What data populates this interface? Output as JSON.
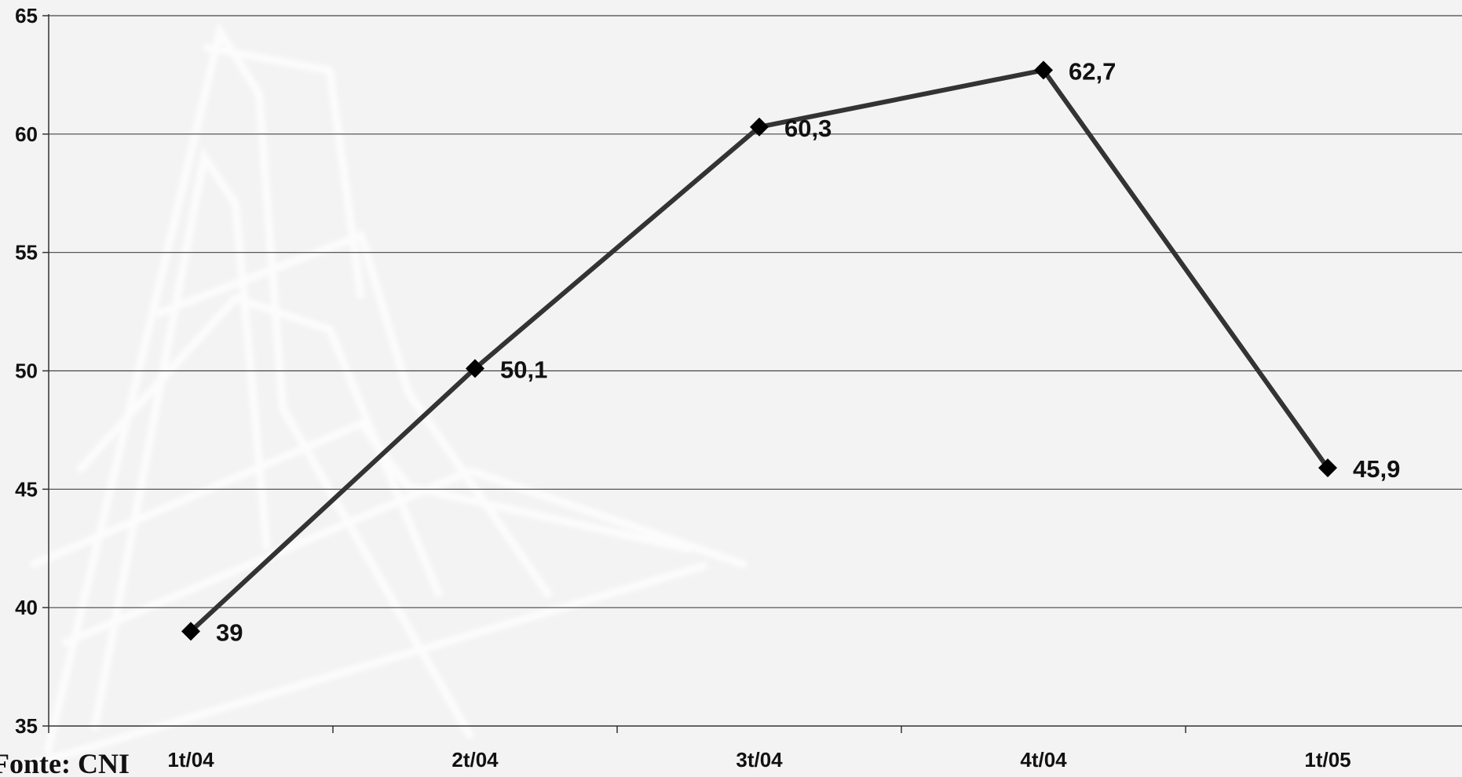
{
  "source": "Fonte: CNI",
  "chart_data": {
    "type": "line",
    "categories": [
      "1t/04",
      "2t/04",
      "3t/04",
      "4t/04",
      "1t/05"
    ],
    "series": [
      {
        "values": [
          39,
          50.1,
          60.3,
          62.7,
          45.9
        ],
        "data_labels": [
          "39",
          "50,1",
          "60,3",
          "62,7",
          "45,9"
        ],
        "color": "#333333",
        "marker": "diamond"
      }
    ],
    "ylim": [
      35,
      65
    ],
    "y_ticks": [
      35,
      40,
      45,
      50,
      55,
      60,
      65
    ],
    "grid": true,
    "legend": "none"
  }
}
